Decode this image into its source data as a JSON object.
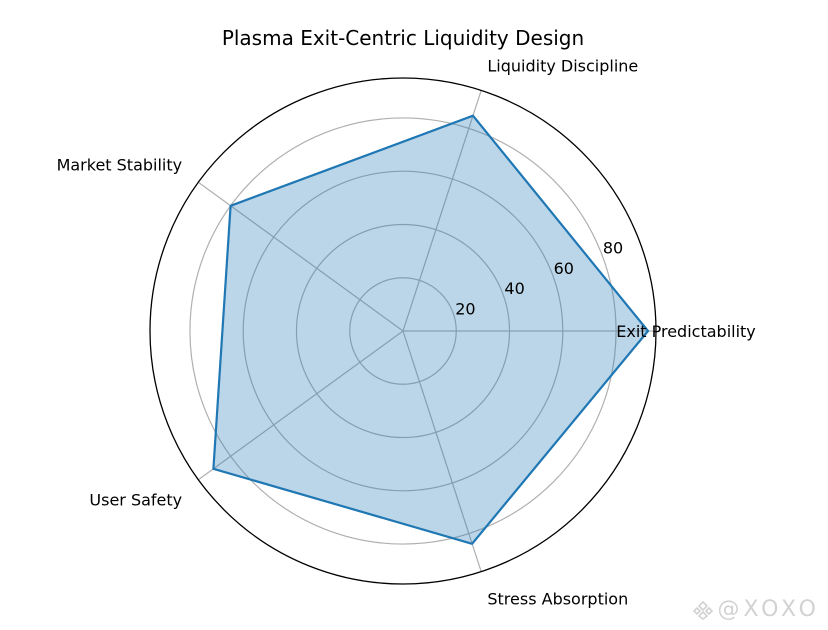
{
  "chart_data": {
    "type": "radar",
    "title": "Plasma Exit-Centric Liquidity Design",
    "categories": [
      "Exit Predictability",
      "Liquidity Discipline",
      "Market Stability",
      "User Safety",
      "Stress Absorption"
    ],
    "values": [
      92,
      85,
      80,
      88,
      84
    ],
    "rlim": [
      0,
      95
    ],
    "rticks": [
      20,
      40,
      60,
      80
    ],
    "grid": true,
    "fill_color": "#1f77b4",
    "fill_opacity": 0.3,
    "line_color": "#1f77b4",
    "grid_color": "#b0b0b0"
  },
  "watermark": {
    "text": "@XOXO",
    "icon": "diamond-logo-icon"
  }
}
